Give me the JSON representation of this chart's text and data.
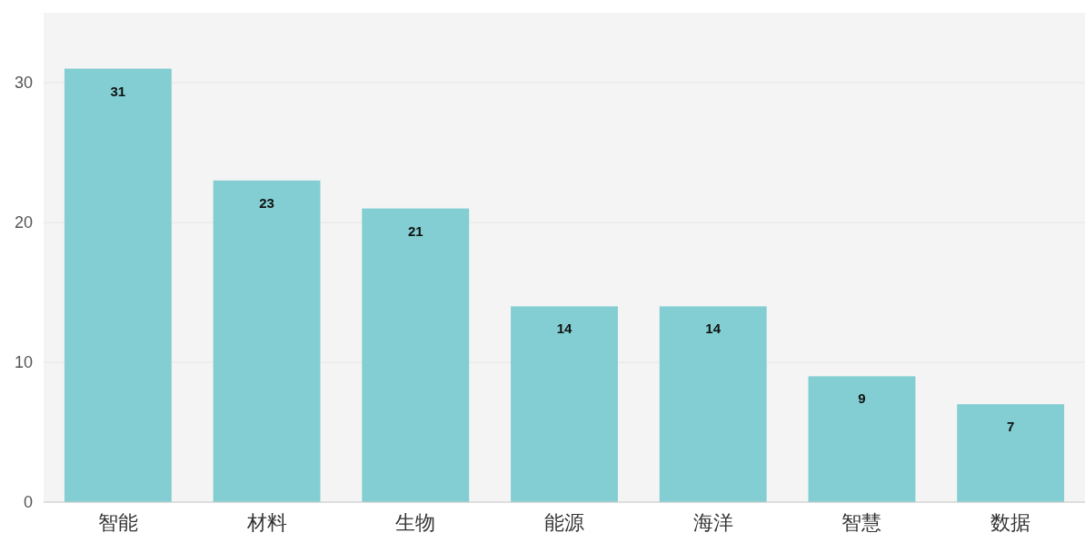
{
  "chart_data": {
    "type": "bar",
    "categories": [
      "智能",
      "材料",
      "生物",
      "能源",
      "海洋",
      "智慧",
      "数据"
    ],
    "values": [
      31,
      23,
      21,
      14,
      14,
      9,
      7
    ],
    "color": "#82ced2",
    "ylim": [
      0,
      35
    ],
    "yticks": [
      0,
      10,
      20,
      30
    ],
    "grid": "y",
    "data_labels": true
  }
}
